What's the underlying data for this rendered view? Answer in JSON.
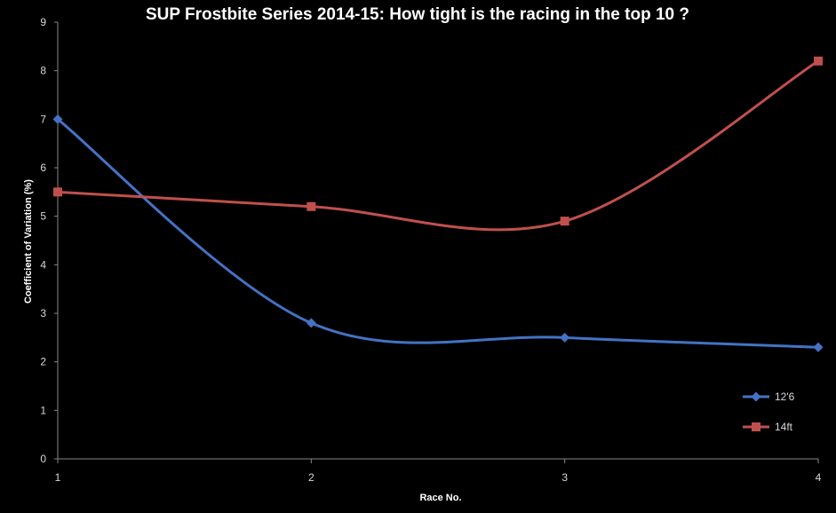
{
  "chart_data": {
    "type": "line",
    "title": "SUP Frostbite Series 2014-15: How tight is the racing in the top 10 ?",
    "xlabel": "Race No.",
    "ylabel": "Coefficient of Variation (%)",
    "x": [
      1,
      2,
      3,
      4
    ],
    "xlim": [
      1,
      4
    ],
    "ylim": [
      0,
      9
    ],
    "yticks": [
      0,
      1,
      2,
      3,
      4,
      5,
      6,
      7,
      8,
      9
    ],
    "grid": false,
    "legend_position": "bottom-right",
    "smooth": true,
    "series": [
      {
        "name": "12'6",
        "values": [
          7.0,
          2.8,
          2.5,
          2.3
        ],
        "color": "#4472c4",
        "marker": "diamond"
      },
      {
        "name": "14ft",
        "values": [
          5.5,
          5.2,
          4.9,
          8.2
        ],
        "color": "#c0504d",
        "marker": "square"
      }
    ]
  }
}
